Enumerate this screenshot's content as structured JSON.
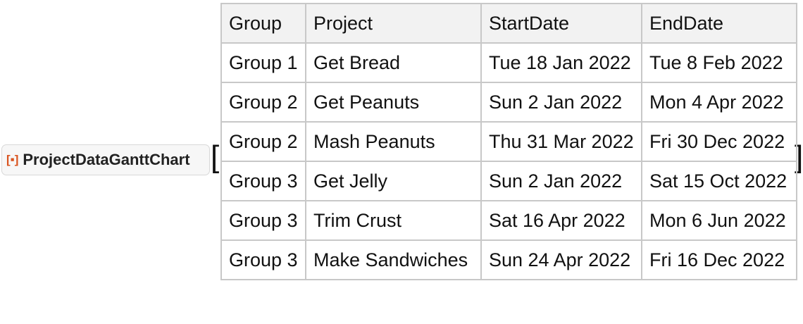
{
  "function": {
    "name": "ProjectDataGanttChart",
    "icon": "resource-function-icon",
    "open_bracket": "[",
    "close_bracket": "]"
  },
  "table": {
    "headers": [
      "Group",
      "Project",
      "StartDate",
      "EndDate"
    ],
    "rows": [
      [
        "Group 1",
        "Get Bread",
        "Tue 18 Jan 2022",
        "Tue 8 Feb 2022"
      ],
      [
        "Group 2",
        "Get Peanuts",
        "Sun 2 Jan 2022",
        "Mon 4 Apr 2022"
      ],
      [
        "Group 2",
        "Mash Peanuts",
        "Thu 31 Mar 2022",
        "Fri 30 Dec 2022"
      ],
      [
        "Group 3",
        "Get Jelly",
        "Sun 2 Jan 2022",
        "Sat 15 Oct 2022"
      ],
      [
        "Group 3",
        "Trim Crust",
        "Sat 16 Apr 2022",
        "Mon 6 Jun 2022"
      ],
      [
        "Group 3",
        "Make Sandwiches",
        "Sun 24 Apr 2022",
        "Fri 16 Dec 2022"
      ]
    ]
  }
}
